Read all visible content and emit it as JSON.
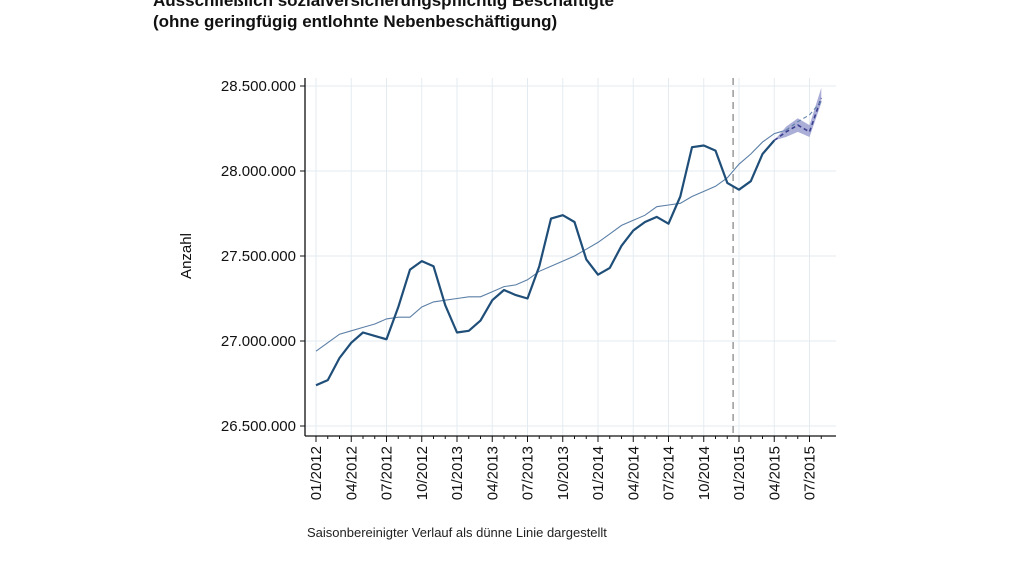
{
  "title_line1": "Ausschließlich sozialversicherungspflichtig Beschäftigte",
  "title_line2": "(ohne geringfügig entlohnte Nebenbeschäftigung)",
  "note": "Saisonbereinigter Verlauf als dünne Linie dargestellt",
  "colors": {
    "original": "#1f4e79",
    "seasonal": "#5b7fa6",
    "forecast_band": "#8f93c9",
    "forecast_line": "#3a3f8f",
    "grid": "#e3ebf0",
    "marker": "#999999"
  },
  "chart_data": {
    "type": "line",
    "title": "Ausschließlich sozialversicherungspflichtig Beschäftigte (ohne geringfügig entlohnte Nebenbeschäftigung)",
    "xlabel": "",
    "ylabel": "Anzahl",
    "ylim": [
      26500000,
      28500000
    ],
    "yticks": [
      26500000,
      27000000,
      27500000,
      28000000,
      28500000
    ],
    "ytick_labels": [
      "26.500.000",
      "27.000.000",
      "27.500.000",
      "28.000.000",
      "28.500.000"
    ],
    "x": [
      "01/2012",
      "02/2012",
      "03/2012",
      "04/2012",
      "05/2012",
      "06/2012",
      "07/2012",
      "08/2012",
      "09/2012",
      "10/2012",
      "11/2012",
      "12/2012",
      "01/2013",
      "02/2013",
      "03/2013",
      "04/2013",
      "05/2013",
      "06/2013",
      "07/2013",
      "08/2013",
      "09/2013",
      "10/2013",
      "11/2013",
      "12/2013",
      "01/2014",
      "02/2014",
      "03/2014",
      "04/2014",
      "05/2014",
      "06/2014",
      "07/2014",
      "08/2014",
      "09/2014",
      "10/2014",
      "11/2014",
      "12/2014",
      "01/2015",
      "02/2015",
      "03/2015",
      "04/2015",
      "05/2015",
      "06/2015",
      "07/2015",
      "08/2015"
    ],
    "xtick_labels": [
      "01/2012",
      "04/2012",
      "07/2012",
      "10/2012",
      "01/2013",
      "04/2013",
      "07/2013",
      "10/2013",
      "01/2014",
      "04/2014",
      "07/2014",
      "10/2014",
      "01/2015",
      "04/2015",
      "07/2015"
    ],
    "grid": true,
    "vertical_marker": "12/2014",
    "series": [
      {
        "style": "original",
        "values": [
          26740000,
          26770000,
          26900000,
          26990000,
          27050000,
          27030000,
          27010000,
          27200000,
          27420000,
          27470000,
          27440000,
          27210000,
          27050000,
          27060000,
          27120000,
          27240000,
          27300000,
          27270000,
          27250000,
          27440000,
          27720000,
          27740000,
          27700000,
          27480000,
          27390000,
          27430000,
          27560000,
          27650000,
          27700000,
          27730000,
          27690000,
          27850000,
          28140000,
          28150000,
          28120000,
          27930000,
          27890000,
          27940000,
          28100000,
          28180000,
          null,
          null,
          null,
          null
        ]
      },
      {
        "style": "seasonal",
        "values": [
          26940000,
          26990000,
          27040000,
          27060000,
          27080000,
          27100000,
          27130000,
          27140000,
          27140000,
          27200000,
          27230000,
          27240000,
          27250000,
          27260000,
          27260000,
          27290000,
          27320000,
          27330000,
          27360000,
          27410000,
          27440000,
          27470000,
          27500000,
          27540000,
          27580000,
          27630000,
          27680000,
          27710000,
          27740000,
          27790000,
          27800000,
          27810000,
          27850000,
          27880000,
          27910000,
          27960000,
          28040000,
          28100000,
          28170000,
          28220000,
          28240000,
          null,
          null,
          null
        ]
      },
      {
        "style": "forecast",
        "values": [
          null,
          null,
          null,
          null,
          null,
          null,
          null,
          null,
          null,
          null,
          null,
          null,
          null,
          null,
          null,
          null,
          null,
          null,
          null,
          null,
          null,
          null,
          null,
          null,
          null,
          null,
          null,
          null,
          null,
          null,
          null,
          null,
          null,
          null,
          null,
          null,
          null,
          null,
          null,
          28180000,
          28230000,
          28270000,
          28230000,
          28430000
        ],
        "lower": [
          null,
          null,
          null,
          null,
          null,
          null,
          null,
          null,
          null,
          null,
          null,
          null,
          null,
          null,
          null,
          null,
          null,
          null,
          null,
          null,
          null,
          null,
          null,
          null,
          null,
          null,
          null,
          null,
          null,
          null,
          null,
          null,
          null,
          null,
          null,
          null,
          null,
          null,
          null,
          28180000,
          28200000,
          28230000,
          28200000,
          28400000
        ],
        "upper": [
          null,
          null,
          null,
          null,
          null,
          null,
          null,
          null,
          null,
          null,
          null,
          null,
          null,
          null,
          null,
          null,
          null,
          null,
          null,
          null,
          null,
          null,
          null,
          null,
          null,
          null,
          null,
          null,
          null,
          null,
          null,
          null,
          null,
          null,
          null,
          null,
          null,
          null,
          null,
          28180000,
          28260000,
          28310000,
          28270000,
          28490000
        ]
      },
      {
        "style": "forecast-seasonal",
        "values": [
          null,
          null,
          null,
          null,
          null,
          null,
          null,
          null,
          null,
          null,
          null,
          null,
          null,
          null,
          null,
          null,
          null,
          null,
          null,
          null,
          null,
          null,
          null,
          null,
          null,
          null,
          null,
          null,
          null,
          null,
          null,
          null,
          null,
          null,
          null,
          null,
          null,
          null,
          null,
          null,
          28240000,
          28290000,
          28330000,
          28410000
        ]
      }
    ]
  }
}
